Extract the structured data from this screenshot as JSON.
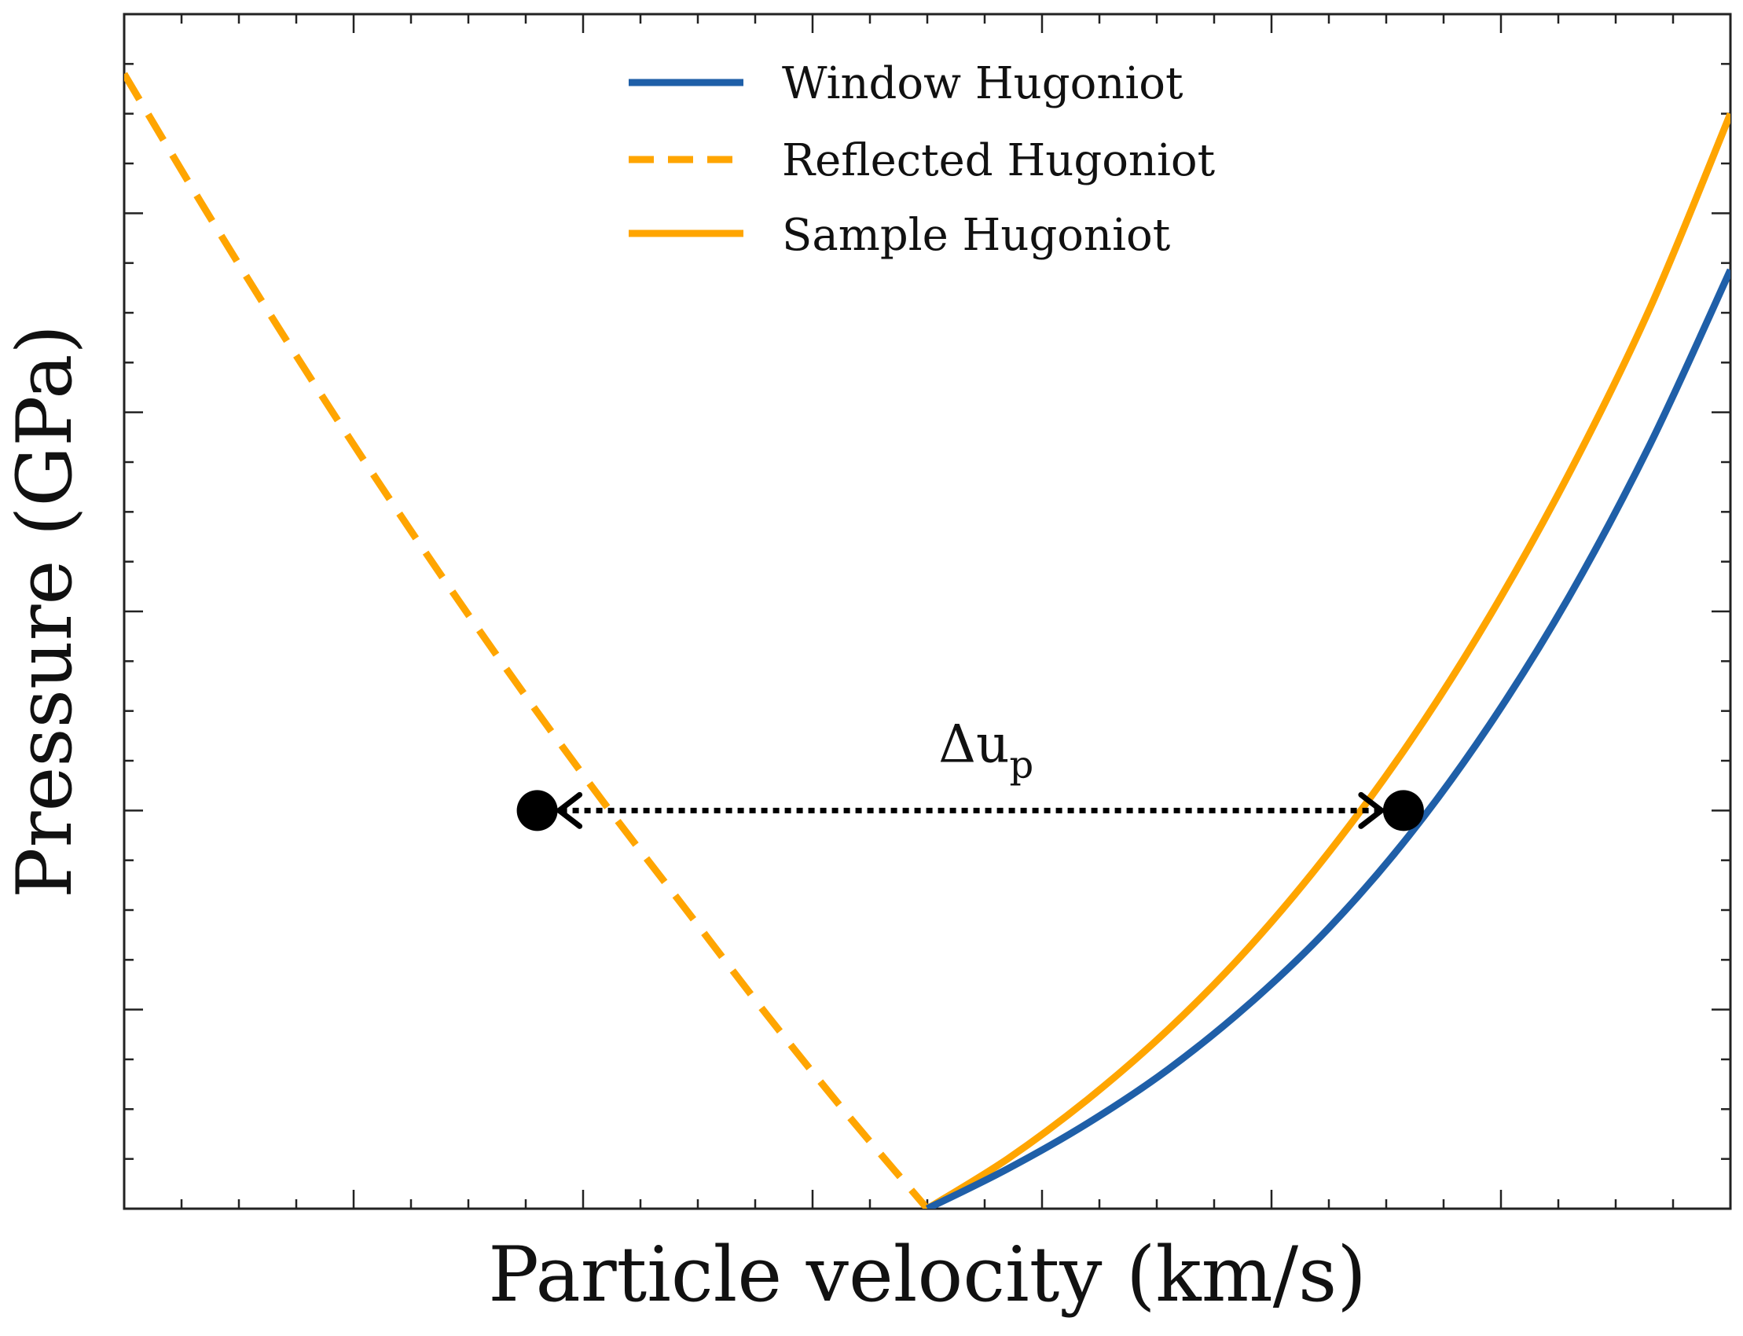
{
  "chart_data": {
    "type": "line",
    "title": "",
    "xlabel": "Particle velocity (km/s)",
    "ylabel": "Pressure (GPa)",
    "xlim": [
      0,
      14
    ],
    "ylim": [
      0,
      12
    ],
    "grid": false,
    "tick_labels_shown": false,
    "legend_position": "top-center",
    "series": [
      {
        "name": "Window Hugoniot",
        "style": "solid",
        "color": "#1f5fa8",
        "x": [
          7.0,
          7.7,
          8.4,
          9.1,
          9.8,
          10.5,
          11.2,
          11.9,
          12.6,
          13.3,
          14.0
        ],
        "y": [
          0.0,
          0.4,
          0.86,
          1.4,
          2.05,
          2.82,
          3.75,
          4.86,
          6.16,
          7.68,
          9.43
        ]
      },
      {
        "name": "Reflected Hugoniot",
        "style": "dashed",
        "color": "#ffa500",
        "x": [
          0.0,
          0.7,
          1.4,
          2.1,
          2.8,
          3.5,
          4.2,
          4.9,
          5.6,
          6.3,
          7.0
        ],
        "y": [
          11.4,
          10.05,
          8.75,
          7.5,
          6.3,
          5.15,
          4.05,
          3.0,
          1.95,
          0.95,
          0.0
        ]
      },
      {
        "name": "Sample Hugoniot",
        "style": "solid",
        "color": "#ffa500",
        "x": [
          7.0,
          7.7,
          8.4,
          9.1,
          9.8,
          10.5,
          11.2,
          11.9,
          12.6,
          13.3,
          14.0
        ],
        "y": [
          0.0,
          0.5,
          1.1,
          1.8,
          2.62,
          3.58,
          4.68,
          5.95,
          7.4,
          9.05,
          11.0
        ]
      }
    ],
    "annotations": {
      "label": "Δu",
      "label_subscript": "p",
      "arrow_style": "dotted double-headed",
      "left_point": [
        3.6,
        4.0
      ],
      "right_point": [
        11.15,
        4.0
      ]
    }
  }
}
